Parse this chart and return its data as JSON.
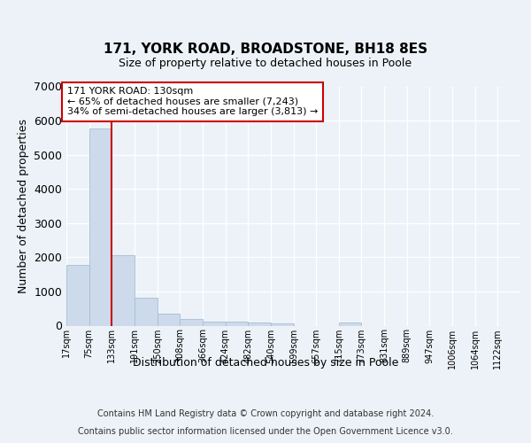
{
  "title1": "171, YORK ROAD, BROADSTONE, BH18 8ES",
  "title2": "Size of property relative to detached houses in Poole",
  "xlabel": "Distribution of detached houses by size in Poole",
  "ylabel": "Number of detached properties",
  "bar_color": "#ccdaeb",
  "bar_edgecolor": "#a8bfd4",
  "vline_color": "#cc0000",
  "annotation_text": "171 YORK ROAD: 130sqm\n← 65% of detached houses are smaller (7,243)\n34% of semi-detached houses are larger (3,813) →",
  "annotation_box_facecolor": "#ffffff",
  "annotation_box_edgecolor": "#cc0000",
  "bins": [
    17,
    75,
    133,
    191,
    250,
    308,
    366,
    424,
    482,
    540,
    599,
    657,
    715,
    773,
    831,
    889,
    947,
    1006,
    1064,
    1122,
    1180
  ],
  "values": [
    1780,
    5780,
    2060,
    820,
    340,
    195,
    120,
    110,
    95,
    75,
    0,
    0,
    80,
    0,
    0,
    0,
    0,
    0,
    0,
    0
  ],
  "ylim": [
    0,
    7000
  ],
  "yticks": [
    0,
    1000,
    2000,
    3000,
    4000,
    5000,
    6000,
    7000
  ],
  "footer1": "Contains HM Land Registry data © Crown copyright and database right 2024.",
  "footer2": "Contains public sector information licensed under the Open Government Licence v3.0.",
  "bg_color": "#edf2f8",
  "plot_bg_color": "#edf2f8",
  "grid_color": "#ffffff"
}
